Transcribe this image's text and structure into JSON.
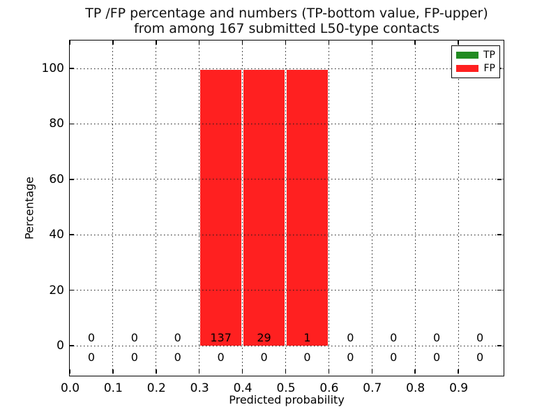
{
  "chart_data": {
    "type": "bar",
    "title_lines": [
      "TP /FP percentage and numbers (TP-bottom value, FP-upper)",
      "from among 167 submitted L50-type contacts"
    ],
    "xlabel": "Predicted probability",
    "ylabel": "Percentage",
    "total_submitted_contacts": 167,
    "xlim": [
      0.0,
      1.0
    ],
    "ylim": [
      -10,
      110
    ],
    "grid": true,
    "background_color": "#ffffff",
    "x_ticks": [
      {
        "value": 0.0,
        "label": "0.0"
      },
      {
        "value": 0.1,
        "label": "0.1"
      },
      {
        "value": 0.2,
        "label": "0.2"
      },
      {
        "value": 0.3,
        "label": "0.3"
      },
      {
        "value": 0.4,
        "label": "0.4"
      },
      {
        "value": 0.5,
        "label": "0.5"
      },
      {
        "value": 0.6,
        "label": "0.6"
      },
      {
        "value": 0.7,
        "label": "0.7"
      },
      {
        "value": 0.8,
        "label": "0.8"
      },
      {
        "value": 0.9,
        "label": "0.9"
      }
    ],
    "y_ticks": [
      {
        "value": 0,
        "label": "0"
      },
      {
        "value": 20,
        "label": "20"
      },
      {
        "value": 40,
        "label": "40"
      },
      {
        "value": 60,
        "label": "60"
      },
      {
        "value": 80,
        "label": "80"
      },
      {
        "value": 100,
        "label": "100"
      }
    ],
    "legend": {
      "position": "upper-right",
      "entries": [
        {
          "label": "TP",
          "color": "#228b22"
        },
        {
          "label": "FP",
          "color": "#ff2020"
        }
      ]
    },
    "bins": [
      {
        "range": [
          0.0,
          0.1
        ],
        "tp_pct": 0,
        "fp_pct": 0,
        "tp_count": 0,
        "fp_count": 0
      },
      {
        "range": [
          0.1,
          0.2
        ],
        "tp_pct": 0,
        "fp_pct": 0,
        "tp_count": 0,
        "fp_count": 0
      },
      {
        "range": [
          0.2,
          0.3
        ],
        "tp_pct": 0,
        "fp_pct": 0,
        "tp_count": 0,
        "fp_count": 0
      },
      {
        "range": [
          0.3,
          0.4
        ],
        "tp_pct": 0,
        "fp_pct": 100,
        "tp_count": 0,
        "fp_count": 137
      },
      {
        "range": [
          0.4,
          0.5
        ],
        "tp_pct": 0,
        "fp_pct": 100,
        "tp_count": 0,
        "fp_count": 29
      },
      {
        "range": [
          0.5,
          0.6
        ],
        "tp_pct": 0,
        "fp_pct": 100,
        "tp_count": 0,
        "fp_count": 1
      },
      {
        "range": [
          0.6,
          0.7
        ],
        "tp_pct": 0,
        "fp_pct": 0,
        "tp_count": 0,
        "fp_count": 0
      },
      {
        "range": [
          0.7,
          0.8
        ],
        "tp_pct": 0,
        "fp_pct": 0,
        "tp_count": 0,
        "fp_count": 0
      },
      {
        "range": [
          0.8,
          0.9
        ],
        "tp_pct": 0,
        "fp_pct": 0,
        "tp_count": 0,
        "fp_count": 0
      },
      {
        "range": [
          0.9,
          1.0
        ],
        "tp_pct": 0,
        "fp_pct": 0,
        "tp_count": 0,
        "fp_count": 0
      }
    ]
  }
}
